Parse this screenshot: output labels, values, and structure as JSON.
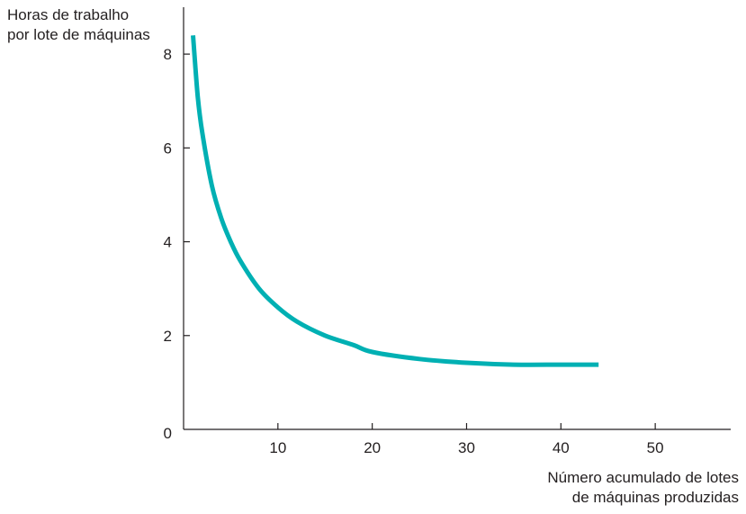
{
  "chart_data": {
    "type": "line",
    "ylabel": [
      "Horas de trabalho",
      "por lote de máquinas"
    ],
    "xlabel": [
      "Número acumulado de lotes",
      "de máquinas produzidas"
    ],
    "xlim": [
      0,
      58
    ],
    "ylim": [
      0,
      9
    ],
    "x_ticks": [
      10,
      20,
      30,
      40,
      50
    ],
    "y_ticks": [
      0,
      2,
      4,
      6,
      8
    ],
    "grid": false,
    "colors": {
      "curve": "#00b0b3",
      "axis": "#231f20"
    },
    "series": [
      {
        "x": [
          1,
          1.5,
          2,
          3,
          4,
          5,
          6,
          8,
          10,
          12,
          15,
          18,
          20,
          25,
          30,
          35,
          40,
          44
        ],
        "y": [
          8.4,
          7.1,
          6.3,
          5.2,
          4.5,
          4.0,
          3.6,
          3.0,
          2.6,
          2.3,
          2.0,
          1.8,
          1.65,
          1.5,
          1.42,
          1.38,
          1.38,
          1.38
        ]
      }
    ]
  }
}
